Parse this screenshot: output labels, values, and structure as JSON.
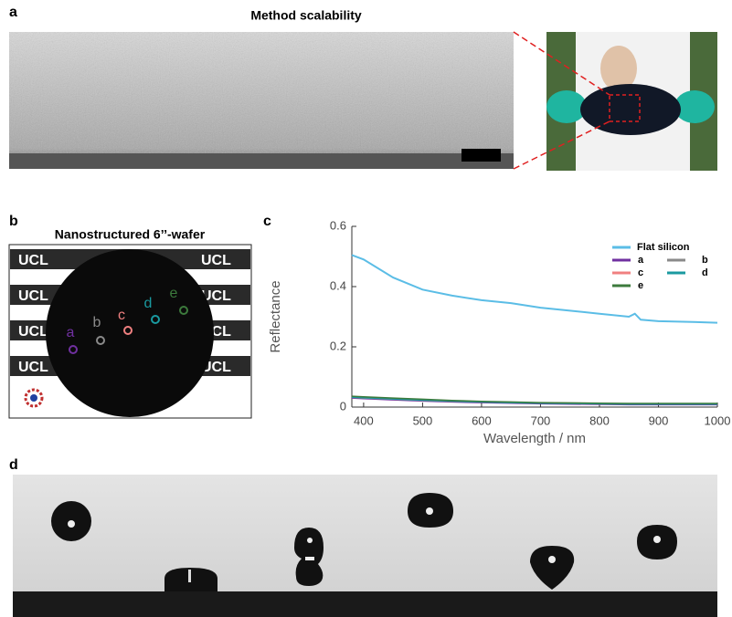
{
  "panels": {
    "a": {
      "label": "a",
      "title": "Method scalability"
    },
    "b": {
      "label": "b",
      "title": "Nanostructured 6’’-wafer",
      "points": [
        "a",
        "b",
        "c",
        "d",
        "e"
      ]
    },
    "c": {
      "label": "c"
    },
    "d": {
      "label": "d"
    }
  },
  "chart_data": {
    "type": "line",
    "xlabel": "Wavelength / nm",
    "ylabel": "Reflectance",
    "x": [
      380,
      400,
      450,
      500,
      550,
      600,
      650,
      700,
      750,
      800,
      850,
      860,
      870,
      900,
      950,
      1000
    ],
    "series": [
      {
        "name": "Flat silicon",
        "color": "#5bbde6",
        "values": [
          0.505,
          0.49,
          0.43,
          0.39,
          0.37,
          0.355,
          0.345,
          0.33,
          0.32,
          0.31,
          0.3,
          0.31,
          0.29,
          0.285,
          0.283,
          0.28
        ]
      },
      {
        "name": "a",
        "color": "#7030a0",
        "values": [
          0.03,
          0.028,
          0.024,
          0.02,
          0.017,
          0.015,
          0.013,
          0.011,
          0.01,
          0.009,
          0.008,
          0.008,
          0.008,
          0.008,
          0.008,
          0.008
        ]
      },
      {
        "name": "b",
        "color": "#8a8a8a",
        "values": [
          0.032,
          0.03,
          0.026,
          0.022,
          0.019,
          0.017,
          0.015,
          0.013,
          0.012,
          0.011,
          0.01,
          0.01,
          0.01,
          0.01,
          0.01,
          0.01
        ]
      },
      {
        "name": "c",
        "color": "#f08080",
        "values": [
          0.034,
          0.032,
          0.028,
          0.024,
          0.021,
          0.018,
          0.016,
          0.014,
          0.013,
          0.012,
          0.011,
          0.011,
          0.011,
          0.011,
          0.011,
          0.011
        ]
      },
      {
        "name": "d",
        "color": "#1a9aa0",
        "values": [
          0.033,
          0.031,
          0.027,
          0.023,
          0.02,
          0.017,
          0.015,
          0.013,
          0.012,
          0.011,
          0.01,
          0.01,
          0.01,
          0.01,
          0.01,
          0.01
        ]
      },
      {
        "name": "e",
        "color": "#3c7a3c",
        "values": [
          0.036,
          0.034,
          0.03,
          0.026,
          0.022,
          0.019,
          0.017,
          0.015,
          0.014,
          0.013,
          0.012,
          0.012,
          0.012,
          0.012,
          0.012,
          0.012
        ]
      }
    ],
    "xlim": [
      380,
      1000
    ],
    "ylim": [
      0,
      0.6
    ],
    "xticks": [
      400,
      500,
      600,
      700,
      800,
      900,
      1000
    ],
    "yticks": [
      0,
      0.2,
      0.4,
      0.6
    ],
    "legend": "upper right",
    "grid": false
  }
}
